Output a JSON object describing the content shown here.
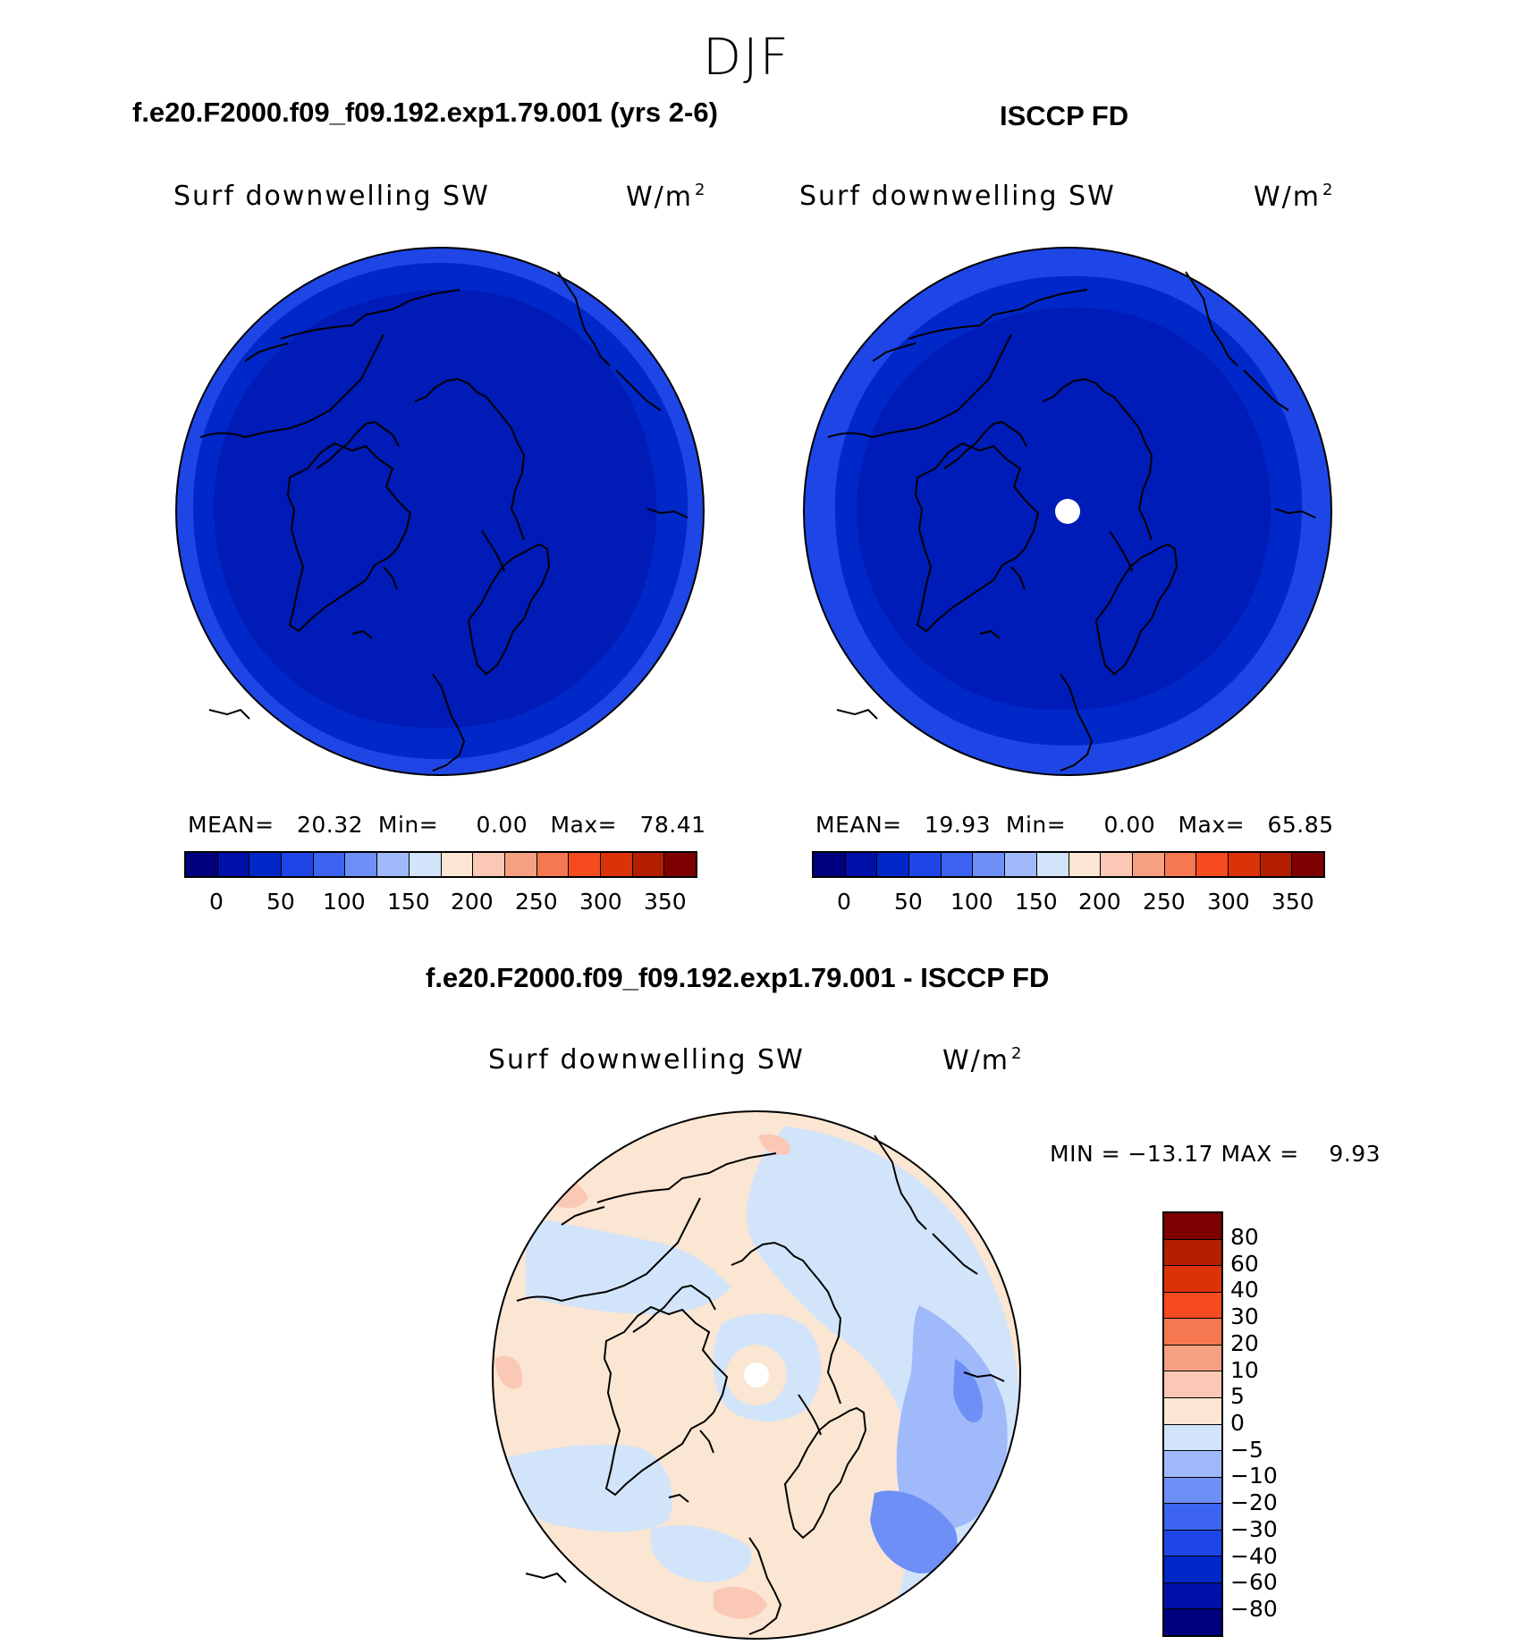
{
  "title": "DJF",
  "panels": {
    "model": {
      "case_title": "f.e20.F2000.f09_f09.192.exp1.79.001 (yrs 2-6)",
      "field_label": "Surf downwelling SW",
      "units": "W/m",
      "units_exp": "2",
      "stats": "MEAN=   20.32  Min=     0.00   Max=   78.41",
      "stat_values": {
        "mean": 20.32,
        "min": 0.0,
        "max": 78.41
      }
    },
    "obs": {
      "case_title": "ISCCP FD",
      "field_label": "Surf downwelling SW",
      "units": "W/m",
      "units_exp": "2",
      "stats": "MEAN=   19.93  Min=     0.00   Max=   65.85",
      "stat_values": {
        "mean": 19.93,
        "min": 0.0,
        "max": 65.85
      }
    },
    "diff": {
      "case_title": "f.e20.F2000.f09_f09.192.exp1.79.001 - ISCCP FD",
      "field_label": "Surf downwelling SW",
      "units": "W/m",
      "units_exp": "2",
      "stats": "MIN = −13.17 MAX =    9.93",
      "stat_values": {
        "min": -13.17,
        "max": 9.93
      }
    }
  },
  "colorbar_abs": {
    "colors": [
      "#00007f",
      "#0010a8",
      "#0028c8",
      "#1e46e6",
      "#3c64f0",
      "#6e8ff5",
      "#a0b9fa",
      "#d2e4fa",
      "#fae6d2",
      "#fac8b4",
      "#f5a082",
      "#f57850",
      "#f54b1e",
      "#dc320a",
      "#b41e00",
      "#7d0000"
    ],
    "labels": [
      "0",
      "50",
      "100",
      "150",
      "200",
      "250",
      "300",
      "350"
    ]
  },
  "colorbar_diff": {
    "colors": [
      "#7d0000",
      "#b41e00",
      "#dc320a",
      "#f54b1e",
      "#f57850",
      "#f5a082",
      "#fac8b4",
      "#fae6d2",
      "#d2e4fa",
      "#a0b9fa",
      "#6e8ff5",
      "#3c64f0",
      "#1e46e6",
      "#0028c8",
      "#0010a8",
      "#00007f"
    ],
    "labels": [
      "80",
      "60",
      "40",
      "30",
      "20",
      "10",
      "5",
      "0",
      "−5",
      "−10",
      "−20",
      "−30",
      "−40",
      "−60",
      "−80"
    ]
  }
}
